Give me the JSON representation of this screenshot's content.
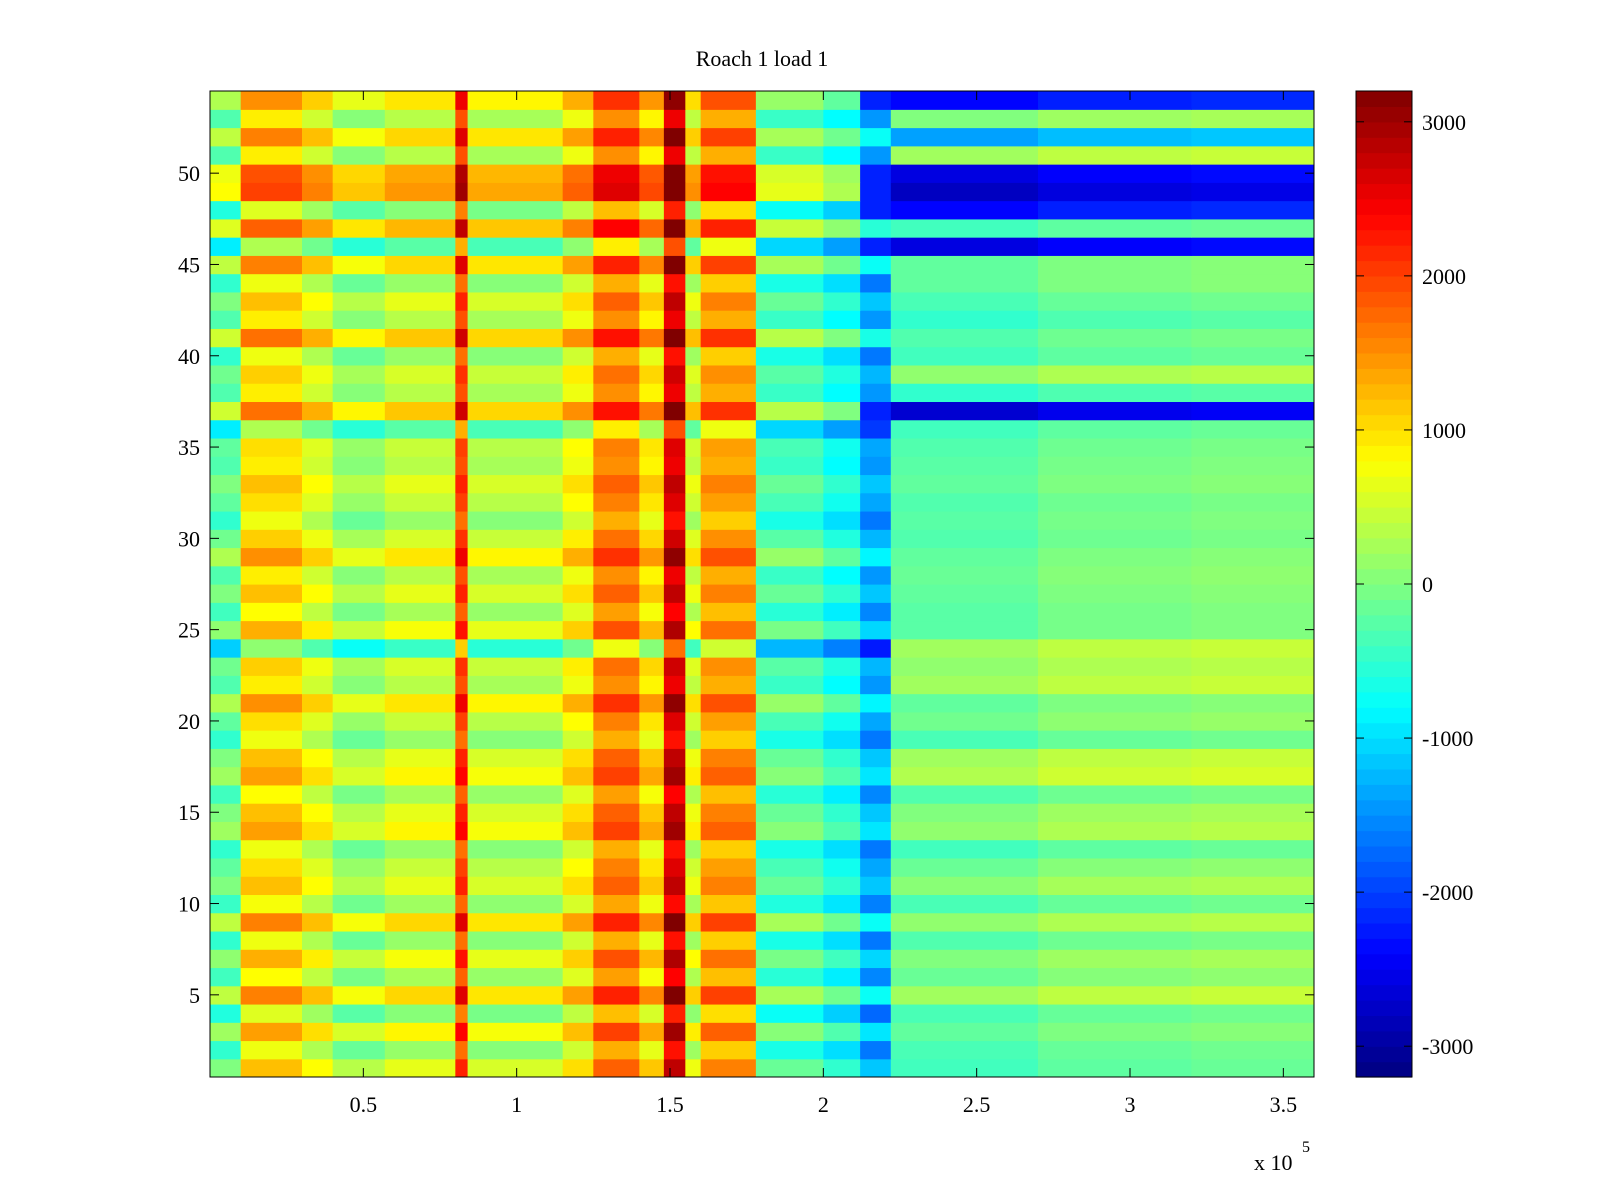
{
  "chart_data": {
    "type": "heatmap",
    "title": "Roach 1 load 1",
    "xlabel": "",
    "ylabel": "",
    "x_exponent_label": "x 10",
    "x_exponent_power": "5",
    "xlim": [
      0,
      360000
    ],
    "ylim": [
      0.5,
      54.5
    ],
    "x_ticks": [
      {
        "value": 50000,
        "label": "0.5"
      },
      {
        "value": 100000,
        "label": "1"
      },
      {
        "value": 150000,
        "label": "1.5"
      },
      {
        "value": 200000,
        "label": "2"
      },
      {
        "value": 250000,
        "label": "2.5"
      },
      {
        "value": 300000,
        "label": "3"
      },
      {
        "value": 350000,
        "label": "3.5"
      }
    ],
    "y_ticks": [
      {
        "value": 5,
        "label": "5"
      },
      {
        "value": 10,
        "label": "10"
      },
      {
        "value": 15,
        "label": "15"
      },
      {
        "value": 20,
        "label": "20"
      },
      {
        "value": 25,
        "label": "25"
      },
      {
        "value": 30,
        "label": "30"
      },
      {
        "value": 35,
        "label": "35"
      },
      {
        "value": 40,
        "label": "40"
      },
      {
        "value": 45,
        "label": "45"
      },
      {
        "value": 50,
        "label": "50"
      }
    ],
    "colormap": "jet",
    "clim": [
      -3200,
      3200
    ],
    "colorbar_ticks": [
      {
        "value": 3000,
        "label": "3000"
      },
      {
        "value": 2000,
        "label": "2000"
      },
      {
        "value": 1000,
        "label": "1000"
      },
      {
        "value": 0,
        "label": "0"
      },
      {
        "value": -1000,
        "label": "-1000"
      },
      {
        "value": -2000,
        "label": "-2000"
      },
      {
        "value": -3000,
        "label": "-3000"
      }
    ],
    "rows": 54,
    "x_segments": [
      {
        "x0": 0,
        "x1": 10000,
        "value": -300
      },
      {
        "x0": 10000,
        "x1": 30000,
        "value": 900
      },
      {
        "x0": 30000,
        "x1": 40000,
        "value": 500
      },
      {
        "x0": 40000,
        "x1": 57000,
        "value": 50
      },
      {
        "x0": 57000,
        "x1": 80000,
        "value": 350
      },
      {
        "x0": 80000,
        "x1": 84000,
        "value": 1900
      },
      {
        "x0": 84000,
        "x1": 115000,
        "value": 250
      },
      {
        "x0": 115000,
        "x1": 125000,
        "value": 700
      },
      {
        "x0": 125000,
        "x1": 140000,
        "value": 1500
      },
      {
        "x0": 140000,
        "x1": 148000,
        "value": 850
      },
      {
        "x0": 148000,
        "x1": 155000,
        "value": 2500
      },
      {
        "x0": 155000,
        "x1": 160000,
        "value": 400
      },
      {
        "x0": 160000,
        "x1": 178000,
        "value": 1300
      },
      {
        "x0": 178000,
        "x1": 200000,
        "value": -450
      },
      {
        "x0": 200000,
        "x1": 212000,
        "value": -800
      },
      {
        "x0": 212000,
        "x1": 222000,
        "value": -1450
      },
      {
        "x0": 222000,
        "x1": 270000,
        "value": -250
      },
      {
        "x0": 270000,
        "x1": 320000,
        "value": 50
      },
      {
        "x0": 320000,
        "x1": 360000,
        "value": 150
      }
    ],
    "row_offsets_left": [
      300,
      -200,
      500,
      -300,
      700,
      -100,
      400,
      -200,
      700,
      -150,
      300,
      100,
      -200,
      500,
      300,
      -100,
      500,
      300,
      -200,
      100,
      600,
      0,
      200,
      -800,
      400,
      -100,
      300,
      0,
      600,
      200,
      -200,
      100,
      300,
      0,
      100,
      -600,
      800,
      0,
      200,
      -200,
      800,
      0,
      300,
      -200,
      700,
      -600,
      900,
      -300,
      1100,
      1000,
      0,
      700,
      0,
      600
    ],
    "row_values_right": [
      -300,
      -250,
      -100,
      -250,
      300,
      -50,
      100,
      -200,
      200,
      -250,
      150,
      -50,
      -300,
      200,
      100,
      -200,
      400,
      300,
      -250,
      0,
      -100,
      300,
      200,
      300,
      -150,
      -150,
      -100,
      -50,
      -100,
      -200,
      -150,
      -200,
      -100,
      -150,
      -200,
      -300,
      -2600,
      -400,
      200,
      -300,
      -200,
      -400,
      -250,
      -100,
      -100,
      -2500,
      -300,
      -2300,
      -2700,
      -2500,
      300,
      -1300,
      100,
      -2300
    ]
  }
}
